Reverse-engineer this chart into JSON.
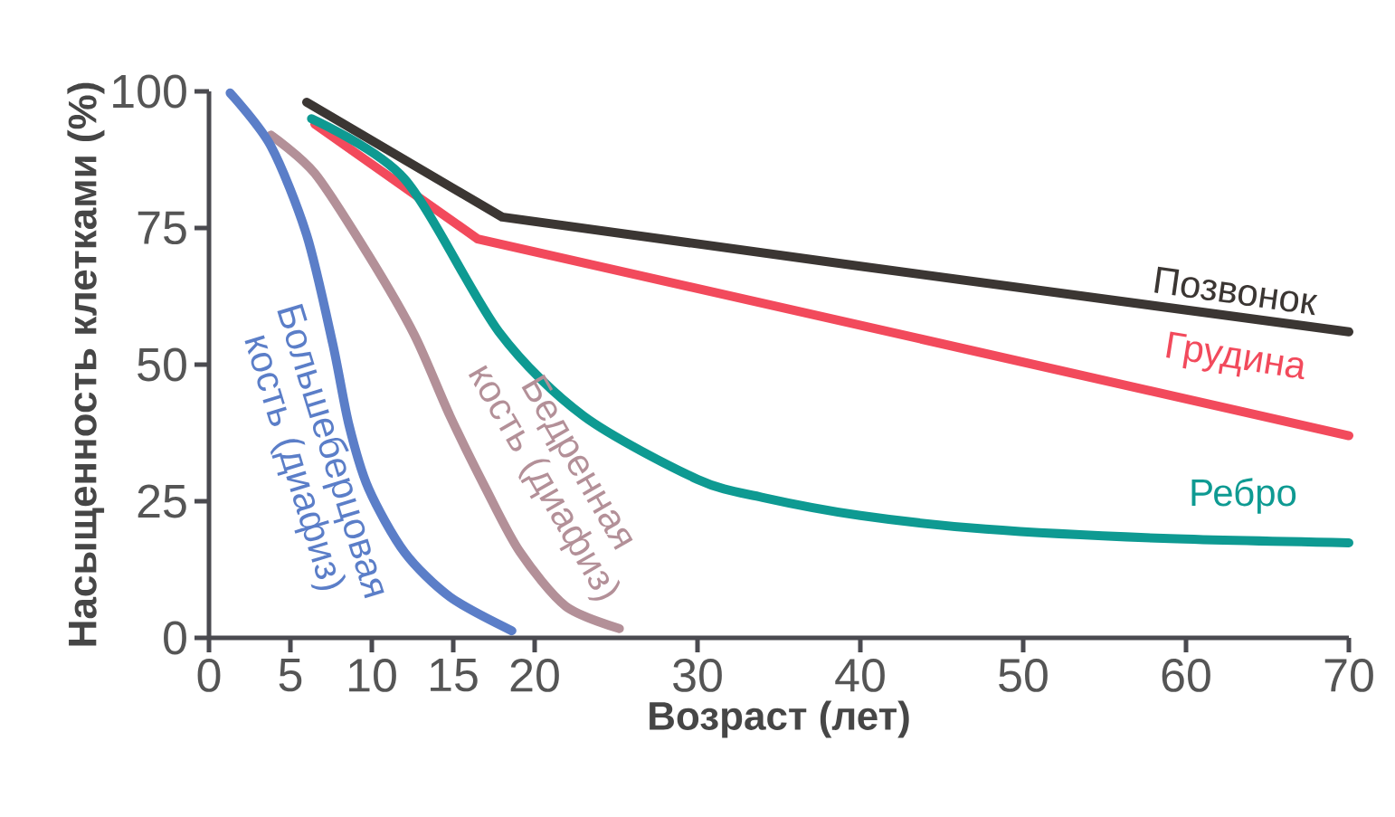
{
  "chart_data": {
    "type": "line",
    "xlabel": "Возраст (лет)",
    "ylabel": "Насыщенность клетками (%)",
    "xlim": [
      0,
      70
    ],
    "ylim": [
      0,
      100
    ],
    "xticks": [
      0,
      5,
      10,
      15,
      20,
      30,
      40,
      50,
      60,
      70
    ],
    "yticks": [
      0,
      25,
      50,
      75,
      100
    ],
    "grid": false,
    "legend": false,
    "marker": "none",
    "line_style": "solid",
    "series": [
      {
        "name": "Позвонок",
        "color": "#3b3633",
        "x": [
          6,
          18,
          40,
          70
        ],
        "values": [
          98,
          77,
          68,
          56
        ]
      },
      {
        "name": "Грудина",
        "color": "#f24a5c",
        "x": [
          6.5,
          16.5,
          70
        ],
        "values": [
          94,
          73,
          37
        ]
      },
      {
        "name": "Ребро",
        "color": "#0e9a92",
        "x": [
          6.3,
          12,
          17.8,
          23,
          30,
          34,
          40,
          47.7,
          58.6,
          70
        ],
        "values": [
          95,
          84,
          56,
          40.6,
          29,
          25.7,
          22.4,
          19.9,
          18.2,
          17.4
        ]
      },
      {
        "name": "Бедренная кость (диафиз)",
        "color": "#b39098",
        "x": [
          3.8,
          6.5,
          9.8,
          12.6,
          14.8,
          17,
          19.1,
          21.9,
          25.2
        ],
        "values": [
          92,
          85,
          70,
          55.5,
          40.6,
          27.3,
          15.7,
          5.8,
          1.7
        ]
      },
      {
        "name": "Большеберцовая кость (диафиз)",
        "color": "#5b7ec8",
        "x": [
          1.3,
          3.8,
          6,
          7.6,
          8.6,
          9.8,
          12,
          14.8,
          18.6
        ],
        "values": [
          99.7,
          90,
          73.7,
          53.8,
          38.9,
          27.3,
          15.7,
          7.5,
          1.3
        ]
      }
    ]
  }
}
